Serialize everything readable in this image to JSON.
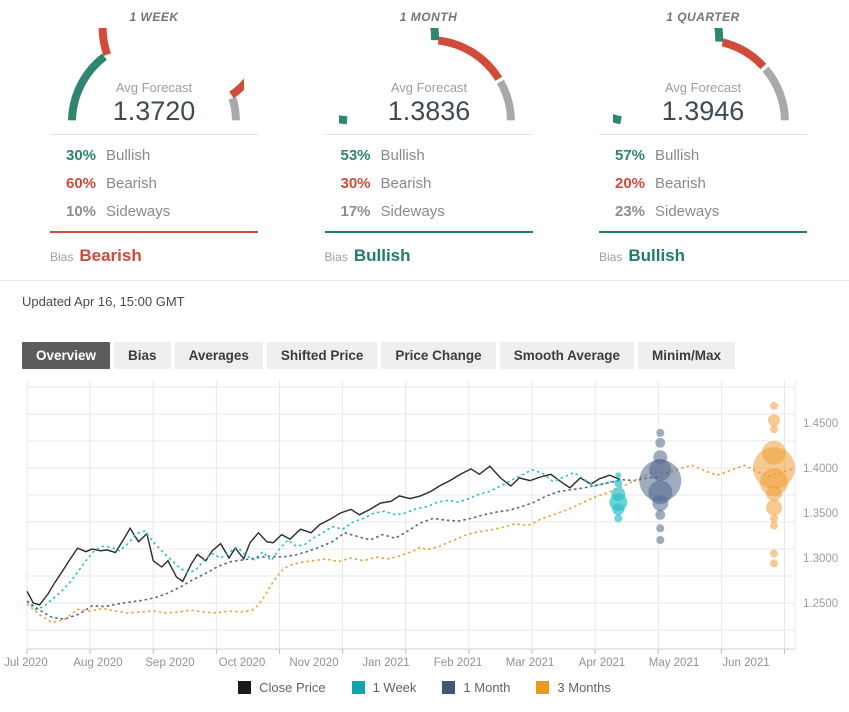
{
  "colors": {
    "green": "#2e8570",
    "red": "#d14b39",
    "gray_arc": "#a9a9a9",
    "gray_pct": "#8d8d8d",
    "grid": "#e7e7e7",
    "axis_text": "#9aa0a6"
  },
  "forecast_panels": [
    {
      "period": "1 WEEK",
      "avg_label": "Avg Forecast",
      "avg_value": "1.3720",
      "gauge": {
        "bullish": 30,
        "bearish": 60,
        "sideways": 10
      },
      "bullish_pct": "30%",
      "bullish_label": "Bullish",
      "bearish_pct": "60%",
      "bearish_label": "Bearish",
      "sideways_pct": "10%",
      "sideways_label": "Sideways",
      "bias_label": "Bias",
      "bias_value": "Bearish",
      "accent": "#cd4a3d"
    },
    {
      "period": "1 MONTH",
      "avg_label": "Avg Forecast",
      "avg_value": "1.3836",
      "gauge": {
        "bullish": 53,
        "bearish": 30,
        "sideways": 17
      },
      "bullish_pct": "53%",
      "bullish_label": "Bullish",
      "bearish_pct": "30%",
      "bearish_label": "Bearish",
      "sideways_pct": "17%",
      "sideways_label": "Sideways",
      "bias_label": "Bias",
      "bias_value": "Bullish",
      "accent": "#1e7e6a"
    },
    {
      "period": "1 QUARTER",
      "avg_label": "Avg Forecast",
      "avg_value": "1.3946",
      "gauge": {
        "bullish": 57,
        "bearish": 20,
        "sideways": 23
      },
      "bullish_pct": "57%",
      "bullish_label": "Bullish",
      "bearish_pct": "20%",
      "bearish_label": "Bearish",
      "sideways_pct": "23%",
      "sideways_label": "Sideways",
      "bias_label": "Bias",
      "bias_value": "Bullish",
      "accent": "#1e7e6a"
    }
  ],
  "updated_text": "Updated Apr 16, 15:00 GMT",
  "tabs": [
    {
      "label": "Overview",
      "active": true
    },
    {
      "label": "Bias",
      "active": false
    },
    {
      "label": "Averages",
      "active": false
    },
    {
      "label": "Shifted Price",
      "active": false
    },
    {
      "label": "Price Change",
      "active": false
    },
    {
      "label": "Smooth Average",
      "active": false
    },
    {
      "label": "Minim/Max",
      "active": false
    }
  ],
  "chart_data": {
    "type": "line",
    "title": "",
    "xlabel": "",
    "ylabel": "",
    "x_axis": {
      "tick_labels": [
        "Jul 2020",
        "Aug 2020",
        "Sep 2020",
        "Oct 2020",
        "Nov 2020",
        "Jan 2021",
        "Feb 2021",
        "Mar 2021",
        "Apr 2021",
        "May 2021",
        "Jun 2021"
      ],
      "range_days": [
        0,
        365
      ],
      "gridline_interval_days": 30
    },
    "y_axis": {
      "tick_labels": [
        "1.4500",
        "1.4000",
        "1.3500",
        "1.3000",
        "1.2500"
      ],
      "tick_values": [
        1.45,
        1.4,
        1.35,
        1.3,
        1.25
      ],
      "range": [
        1.199,
        1.493
      ],
      "gridline_values": [
        1.49,
        1.46,
        1.43,
        1.4,
        1.37,
        1.34,
        1.31,
        1.28,
        1.25,
        1.22
      ]
    },
    "series": [
      {
        "name": "Close Price",
        "color": "#2b2b2b",
        "style": "solid",
        "x": [
          0,
          3,
          6,
          10,
          13,
          17,
          20,
          24,
          28,
          31,
          35,
          38,
          42,
          46,
          49,
          53,
          57,
          60,
          64,
          67,
          71,
          74,
          78,
          81,
          85,
          88,
          92,
          96,
          99,
          103,
          106,
          110,
          114,
          117,
          121,
          125,
          130,
          135,
          139,
          144,
          149,
          154,
          158,
          163,
          168,
          173,
          177,
          182,
          187,
          192,
          196,
          201,
          206,
          211,
          215,
          220,
          225,
          230,
          234,
          239,
          244,
          249,
          253,
          258,
          263,
          268,
          272,
          277,
          282
        ],
        "y": [
          1.263,
          1.25,
          1.248,
          1.26,
          1.272,
          1.286,
          1.297,
          1.311,
          1.307,
          1.31,
          1.308,
          1.309,
          1.306,
          1.321,
          1.333,
          1.318,
          1.327,
          1.297,
          1.29,
          1.297,
          1.279,
          1.274,
          1.293,
          1.304,
          1.297,
          1.308,
          1.316,
          1.3,
          1.311,
          1.299,
          1.317,
          1.328,
          1.318,
          1.317,
          1.326,
          1.321,
          1.332,
          1.328,
          1.337,
          1.343,
          1.35,
          1.354,
          1.348,
          1.354,
          1.361,
          1.363,
          1.369,
          1.366,
          1.369,
          1.374,
          1.38,
          1.386,
          1.393,
          1.399,
          1.393,
          1.402,
          1.389,
          1.38,
          1.389,
          1.386,
          1.39,
          1.393,
          1.386,
          1.378,
          1.389,
          1.382,
          1.388,
          1.392,
          1.387
        ]
      },
      {
        "name": "1 Week",
        "color": "#2fbfc7",
        "style": "dashed",
        "x": [
          0,
          4,
          8,
          12,
          16,
          20,
          24,
          28,
          32,
          36,
          40,
          44,
          48,
          52,
          56,
          60,
          64,
          68,
          72,
          76,
          80,
          84,
          88,
          92,
          96,
          100,
          104,
          108,
          112,
          116,
          120,
          124,
          128,
          132,
          136,
          140,
          145,
          150,
          155,
          160,
          165,
          170,
          175,
          180,
          185,
          190,
          195,
          200,
          205,
          210,
          215,
          220,
          225,
          230,
          235,
          240,
          245,
          250,
          255,
          260,
          265,
          270,
          275,
          281
        ],
        "y": [
          1.252,
          1.243,
          1.246,
          1.254,
          1.262,
          1.272,
          1.284,
          1.297,
          1.308,
          1.313,
          1.312,
          1.308,
          1.316,
          1.327,
          1.33,
          1.318,
          1.308,
          1.299,
          1.29,
          1.284,
          1.286,
          1.297,
          1.305,
          1.3,
          1.306,
          1.312,
          1.303,
          1.298,
          1.307,
          1.297,
          1.31,
          1.32,
          1.313,
          1.315,
          1.322,
          1.327,
          1.335,
          1.332,
          1.34,
          1.344,
          1.35,
          1.352,
          1.348,
          1.35,
          1.355,
          1.357,
          1.362,
          1.364,
          1.362,
          1.366,
          1.371,
          1.374,
          1.38,
          1.386,
          1.392,
          1.398,
          1.394,
          1.385,
          1.39,
          1.395,
          1.387,
          1.38,
          1.383,
          1.386
        ]
      },
      {
        "name": "1 Month",
        "color": "#4a6890",
        "style": "dashed",
        "x": [
          0,
          6,
          12,
          18,
          25,
          31,
          37,
          43,
          49,
          55,
          61,
          67,
          73,
          79,
          85,
          91,
          97,
          103,
          109,
          115,
          121,
          127,
          133,
          139,
          145,
          151,
          157,
          163,
          169,
          175,
          181,
          187,
          193,
          199,
          205,
          211,
          217,
          223,
          229,
          235,
          241,
          247,
          253,
          259,
          265,
          271,
          277,
          283,
          289,
          295,
          301
        ],
        "y": [
          1.252,
          1.242,
          1.234,
          1.232,
          1.238,
          1.247,
          1.246,
          1.249,
          1.251,
          1.253,
          1.256,
          1.261,
          1.268,
          1.276,
          1.283,
          1.291,
          1.296,
          1.298,
          1.3,
          1.302,
          1.301,
          1.303,
          1.307,
          1.312,
          1.318,
          1.328,
          1.324,
          1.32,
          1.326,
          1.322,
          1.33,
          1.339,
          1.344,
          1.342,
          1.341,
          1.344,
          1.348,
          1.351,
          1.353,
          1.357,
          1.362,
          1.369,
          1.374,
          1.376,
          1.378,
          1.381,
          1.384,
          1.387,
          1.386,
          1.389,
          1.39
        ]
      },
      {
        "name": "3 Months",
        "color": "#f0a03c",
        "style": "dashed",
        "x": [
          0,
          6,
          12,
          18,
          24,
          30,
          36,
          42,
          48,
          54,
          60,
          66,
          72,
          78,
          84,
          90,
          96,
          102,
          107,
          110,
          113,
          116,
          119,
          122,
          125,
          130,
          136,
          142,
          148,
          154,
          160,
          166,
          172,
          178,
          184,
          187,
          190,
          196,
          202,
          208,
          214,
          220,
          226,
          232,
          238,
          244,
          250,
          256,
          262,
          268,
          274,
          280,
          286,
          292,
          298,
          304,
          310,
          316,
          322,
          328,
          334,
          341,
          347,
          353,
          359,
          365
        ],
        "y": [
          1.249,
          1.237,
          1.228,
          1.232,
          1.243,
          1.241,
          1.244,
          1.241,
          1.239,
          1.24,
          1.241,
          1.239,
          1.24,
          1.242,
          1.24,
          1.239,
          1.241,
          1.24,
          1.242,
          1.248,
          1.258,
          1.27,
          1.28,
          1.288,
          1.292,
          1.295,
          1.297,
          1.299,
          1.296,
          1.3,
          1.297,
          1.301,
          1.299,
          1.303,
          1.308,
          1.312,
          1.309,
          1.313,
          1.319,
          1.325,
          1.329,
          1.331,
          1.334,
          1.338,
          1.336,
          1.343,
          1.348,
          1.353,
          1.359,
          1.366,
          1.371,
          1.376,
          1.383,
          1.39,
          1.396,
          1.394,
          1.399,
          1.403,
          1.397,
          1.392,
          1.397,
          1.403,
          1.396,
          1.391,
          1.396,
          1.399
        ]
      }
    ],
    "bubbles": [
      {
        "name": "1 Week",
        "color": "#2fc0c9",
        "opacity": 0.7,
        "x_day": 281,
        "points": [
          {
            "price": 1.392,
            "r": 3
          },
          {
            "price": 1.383,
            "r": 4
          },
          {
            "price": 1.371,
            "r": 7
          },
          {
            "price": 1.362,
            "r": 9
          },
          {
            "price": 1.354,
            "r": 6
          },
          {
            "price": 1.344,
            "r": 4
          }
        ]
      },
      {
        "name": "1 Month",
        "color": "#51678c",
        "opacity": 0.55,
        "x_day": 301,
        "points": [
          {
            "price": 1.439,
            "r": 4
          },
          {
            "price": 1.428,
            "r": 5
          },
          {
            "price": 1.412,
            "r": 7
          },
          {
            "price": 1.398,
            "r": 11
          },
          {
            "price": 1.386,
            "r": 21
          },
          {
            "price": 1.373,
            "r": 12
          },
          {
            "price": 1.361,
            "r": 8
          },
          {
            "price": 1.348,
            "r": 5
          },
          {
            "price": 1.333,
            "r": 4
          },
          {
            "price": 1.32,
            "r": 4
          }
        ]
      },
      {
        "name": "3 Months",
        "color": "#f09e3a",
        "opacity": 0.55,
        "x_day": 355,
        "points": [
          {
            "price": 1.469,
            "r": 4
          },
          {
            "price": 1.453,
            "r": 6
          },
          {
            "price": 1.443,
            "r": 4
          },
          {
            "price": 1.417,
            "r": 12
          },
          {
            "price": 1.4,
            "r": 21
          },
          {
            "price": 1.384,
            "r": 14
          },
          {
            "price": 1.372,
            "r": 8
          },
          {
            "price": 1.356,
            "r": 8
          },
          {
            "price": 1.344,
            "r": 4
          },
          {
            "price": 1.336,
            "r": 4
          },
          {
            "price": 1.305,
            "r": 4
          },
          {
            "price": 1.294,
            "r": 4
          }
        ]
      }
    ],
    "legend": [
      {
        "label": "Close Price",
        "color": "#1a1a1a"
      },
      {
        "label": "1 Week",
        "color": "#10a5a9"
      },
      {
        "label": "1 Month",
        "color": "#3c5a78"
      },
      {
        "label": "3 Months",
        "color": "#ea9a21"
      }
    ]
  }
}
